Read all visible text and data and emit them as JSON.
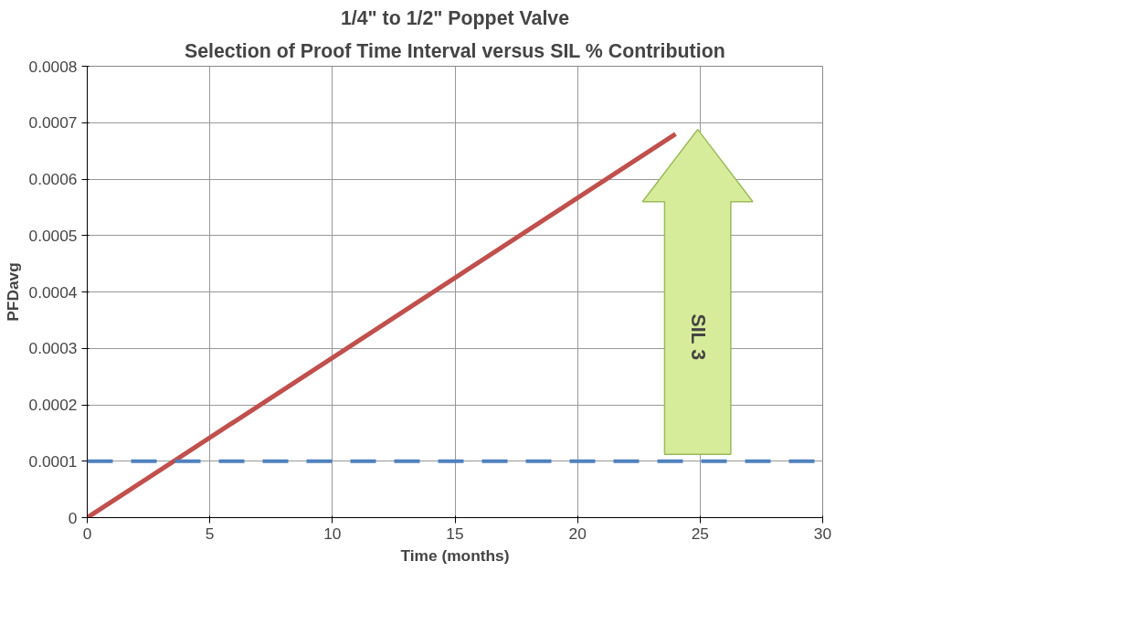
{
  "chart_data": {
    "type": "line",
    "title": "1/4\" to 1/2\" Poppet Valve",
    "subtitle": "Selection of Proof Time Interval versus SIL % Contribution",
    "xlabel": "Time (months)",
    "ylabel": "PFDavg",
    "x": [
      0,
      12,
      24
    ],
    "series": [
      {
        "color": "#c0504d",
        "values": [
          0,
          0.00034,
          0.00068
        ]
      }
    ],
    "xlim": [
      0,
      30
    ],
    "xticks": [
      0,
      5,
      10,
      15,
      20,
      25,
      30
    ],
    "ylim": [
      0,
      0.0008
    ],
    "yticks": [
      0,
      0.0001,
      0.0002,
      0.0003,
      0.0004,
      0.0005,
      0.0006,
      0.0007,
      0.0008
    ],
    "ref_lines": [
      {
        "axis": "y",
        "value": 0.0001,
        "color": "#4f81bd",
        "line_style": "dashed"
      }
    ],
    "annotations": [
      "SIL 3"
    ],
    "grid": true,
    "marker": "none",
    "line_style": "solid"
  }
}
